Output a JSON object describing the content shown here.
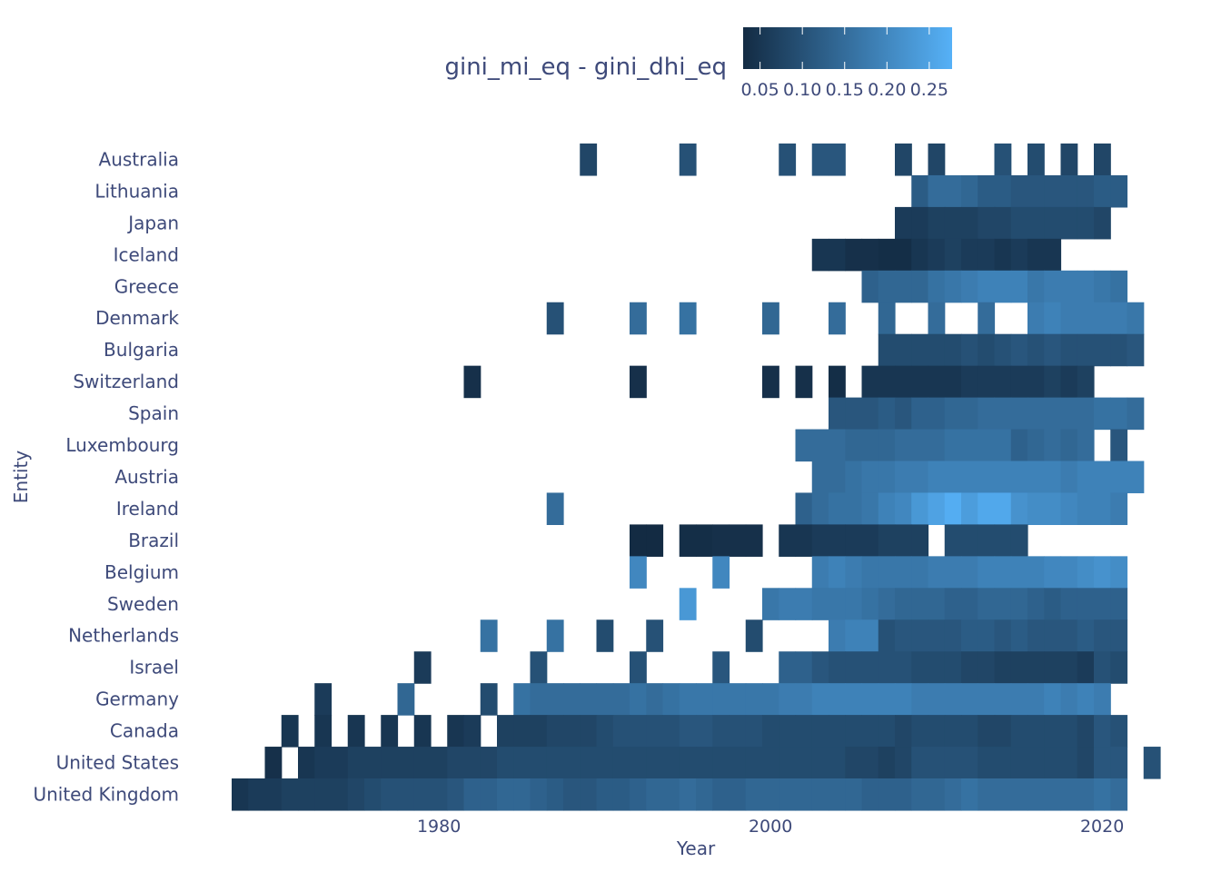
{
  "chart_data": {
    "type": "heatmap",
    "xlabel": "Year",
    "ylabel": "Entity",
    "xlim": [
      1967.5,
      2023.5
    ],
    "x_ticks": [
      "1980",
      "2000",
      "2020"
    ],
    "legend": {
      "title": "gini_mi_eq - gini_dhi_eq",
      "ticks": [
        "0.05",
        "0.10",
        "0.15",
        "0.20",
        "0.25"
      ],
      "range": [
        0.03,
        0.277
      ],
      "position": "top",
      "colors": [
        "#132b43",
        "#56b1f7"
      ]
    },
    "entities": [
      "Australia",
      "Lithuania",
      "Japan",
      "Iceland",
      "Greece",
      "Denmark",
      "Bulgaria",
      "Switzerland",
      "Spain",
      "Luxembourg",
      "Austria",
      "Ireland",
      "Brazil",
      "Belgium",
      "Sweden",
      "Netherlands",
      "Israel",
      "Germany",
      "Canada",
      "United States",
      "United Kingdom"
    ],
    "series": [
      {
        "name": "Australia",
        "years": [
          1989,
          1995,
          2001,
          2003,
          2004,
          2008,
          2010,
          2014,
          2016,
          2018,
          2020
        ],
        "values": [
          0.08,
          0.1,
          0.1,
          0.11,
          0.11,
          0.08,
          0.08,
          0.1,
          0.09,
          0.08,
          0.08
        ]
      },
      {
        "name": "Lithuania",
        "years": [
          2009,
          2010,
          2011,
          2012,
          2013,
          2014,
          2015,
          2016,
          2017,
          2018,
          2019,
          2020,
          2021
        ],
        "values": [
          0.12,
          0.15,
          0.15,
          0.14,
          0.12,
          0.12,
          0.11,
          0.11,
          0.11,
          0.11,
          0.11,
          0.12,
          0.12
        ]
      },
      {
        "name": "Japan",
        "years": [
          2008,
          2009,
          2010,
          2011,
          2012,
          2013,
          2014,
          2015,
          2016,
          2017,
          2018,
          2019,
          2020
        ],
        "values": [
          0.06,
          0.06,
          0.07,
          0.07,
          0.07,
          0.08,
          0.08,
          0.09,
          0.09,
          0.09,
          0.09,
          0.09,
          0.08
        ]
      },
      {
        "name": "Iceland",
        "years": [
          2003,
          2004,
          2005,
          2006,
          2007,
          2008,
          2009,
          2010,
          2011,
          2012,
          2013,
          2014,
          2015,
          2016,
          2017
        ],
        "values": [
          0.05,
          0.05,
          0.04,
          0.04,
          0.035,
          0.035,
          0.05,
          0.06,
          0.07,
          0.06,
          0.06,
          0.05,
          0.06,
          0.05,
          0.05
        ]
      },
      {
        "name": "Greece",
        "years": [
          2006,
          2007,
          2008,
          2009,
          2010,
          2011,
          2012,
          2013,
          2014,
          2015,
          2016,
          2017,
          2018,
          2019,
          2020,
          2021
        ],
        "values": [
          0.13,
          0.14,
          0.14,
          0.14,
          0.16,
          0.17,
          0.18,
          0.19,
          0.19,
          0.19,
          0.17,
          0.18,
          0.18,
          0.18,
          0.17,
          0.16
        ]
      },
      {
        "name": "Denmark",
        "years": [
          1987,
          1992,
          1995,
          2000,
          2004,
          2007,
          2010,
          2013,
          2016,
          2017,
          2018,
          2019,
          2020,
          2021,
          2022
        ],
        "values": [
          0.1,
          0.15,
          0.16,
          0.14,
          0.15,
          0.14,
          0.15,
          0.15,
          0.18,
          0.19,
          0.18,
          0.18,
          0.18,
          0.18,
          0.17
        ]
      },
      {
        "name": "Bulgaria",
        "years": [
          2007,
          2008,
          2009,
          2010,
          2011,
          2012,
          2013,
          2014,
          2015,
          2016,
          2017,
          2018,
          2019,
          2020,
          2021,
          2022
        ],
        "values": [
          0.09,
          0.09,
          0.09,
          0.09,
          0.09,
          0.1,
          0.09,
          0.1,
          0.11,
          0.1,
          0.11,
          0.1,
          0.1,
          0.1,
          0.1,
          0.11
        ]
      },
      {
        "name": "Switzerland",
        "years": [
          1982,
          1992,
          2000,
          2002,
          2004,
          2006,
          2007,
          2008,
          2009,
          2010,
          2011,
          2012,
          2013,
          2014,
          2015,
          2016,
          2017,
          2018,
          2019
        ],
        "values": [
          0.04,
          0.04,
          0.04,
          0.04,
          0.035,
          0.05,
          0.05,
          0.05,
          0.05,
          0.05,
          0.05,
          0.06,
          0.06,
          0.06,
          0.06,
          0.06,
          0.07,
          0.06,
          0.07
        ]
      },
      {
        "name": "Spain",
        "years": [
          2004,
          2005,
          2006,
          2007,
          2008,
          2009,
          2010,
          2011,
          2012,
          2013,
          2014,
          2015,
          2016,
          2017,
          2018,
          2019,
          2020,
          2021,
          2022
        ],
        "values": [
          0.11,
          0.11,
          0.11,
          0.12,
          0.11,
          0.13,
          0.13,
          0.14,
          0.14,
          0.15,
          0.15,
          0.15,
          0.15,
          0.15,
          0.15,
          0.15,
          0.16,
          0.16,
          0.15
        ]
      },
      {
        "name": "Luxembourg",
        "years": [
          2002,
          2003,
          2004,
          2005,
          2006,
          2007,
          2008,
          2009,
          2010,
          2011,
          2012,
          2013,
          2014,
          2015,
          2016,
          2017,
          2018,
          2019,
          2021
        ],
        "values": [
          0.15,
          0.15,
          0.15,
          0.14,
          0.14,
          0.14,
          0.15,
          0.15,
          0.15,
          0.16,
          0.16,
          0.16,
          0.16,
          0.13,
          0.14,
          0.15,
          0.14,
          0.15,
          0.11
        ]
      },
      {
        "name": "Austria",
        "years": [
          2003,
          2004,
          2005,
          2006,
          2007,
          2008,
          2009,
          2010,
          2011,
          2012,
          2013,
          2014,
          2015,
          2016,
          2017,
          2018,
          2019,
          2020,
          2021,
          2022
        ],
        "values": [
          0.15,
          0.15,
          0.16,
          0.17,
          0.17,
          0.18,
          0.18,
          0.19,
          0.19,
          0.19,
          0.19,
          0.19,
          0.19,
          0.19,
          0.19,
          0.18,
          0.19,
          0.19,
          0.19,
          0.19
        ]
      },
      {
        "name": "Ireland",
        "years": [
          1987,
          2002,
          2003,
          2004,
          2005,
          2006,
          2007,
          2008,
          2009,
          2010,
          2011,
          2012,
          2013,
          2014,
          2015,
          2016,
          2017,
          2018,
          2019,
          2020,
          2021
        ],
        "values": [
          0.15,
          0.13,
          0.15,
          0.16,
          0.16,
          0.17,
          0.19,
          0.2,
          0.23,
          0.25,
          0.27,
          0.24,
          0.26,
          0.26,
          0.22,
          0.21,
          0.21,
          0.2,
          0.19,
          0.19,
          0.18
        ]
      },
      {
        "name": "Brazil",
        "years": [
          1992,
          1993,
          1995,
          1996,
          1997,
          1998,
          1999,
          2001,
          2002,
          2003,
          2004,
          2005,
          2006,
          2007,
          2008,
          2009,
          2011,
          2012,
          2013,
          2014,
          2015
        ],
        "values": [
          0.03,
          0.03,
          0.035,
          0.035,
          0.04,
          0.04,
          0.04,
          0.05,
          0.05,
          0.06,
          0.06,
          0.06,
          0.06,
          0.07,
          0.07,
          0.07,
          0.09,
          0.09,
          0.09,
          0.09,
          0.09
        ]
      },
      {
        "name": "Belgium",
        "years": [
          1992,
          1997,
          2003,
          2004,
          2005,
          2006,
          2007,
          2008,
          2009,
          2010,
          2011,
          2012,
          2013,
          2014,
          2015,
          2016,
          2017,
          2018,
          2019,
          2020,
          2021
        ],
        "values": [
          0.2,
          0.2,
          0.18,
          0.19,
          0.18,
          0.17,
          0.17,
          0.17,
          0.17,
          0.18,
          0.18,
          0.18,
          0.19,
          0.19,
          0.19,
          0.19,
          0.2,
          0.2,
          0.21,
          0.22,
          0.21
        ]
      },
      {
        "name": "Sweden",
        "years": [
          1995,
          2000,
          2001,
          2002,
          2003,
          2004,
          2005,
          2006,
          2007,
          2008,
          2009,
          2010,
          2011,
          2012,
          2013,
          2014,
          2015,
          2016,
          2017,
          2018,
          2019,
          2020,
          2021
        ],
        "values": [
          0.23,
          0.17,
          0.18,
          0.18,
          0.17,
          0.17,
          0.17,
          0.16,
          0.15,
          0.14,
          0.14,
          0.14,
          0.13,
          0.13,
          0.14,
          0.14,
          0.14,
          0.13,
          0.12,
          0.13,
          0.13,
          0.13,
          0.13
        ]
      },
      {
        "name": "Netherlands",
        "years": [
          1983,
          1987,
          1990,
          1993,
          1999,
          2004,
          2005,
          2006,
          2007,
          2008,
          2009,
          2010,
          2011,
          2012,
          2013,
          2014,
          2015,
          2016,
          2017,
          2018,
          2019,
          2020,
          2021
        ],
        "values": [
          0.16,
          0.16,
          0.09,
          0.1,
          0.09,
          0.18,
          0.19,
          0.19,
          0.1,
          0.11,
          0.11,
          0.11,
          0.11,
          0.12,
          0.12,
          0.11,
          0.12,
          0.11,
          0.11,
          0.11,
          0.12,
          0.11,
          0.11
        ]
      },
      {
        "name": "Israel",
        "years": [
          1979,
          1986,
          1992,
          1997,
          2001,
          2002,
          2003,
          2004,
          2005,
          2006,
          2007,
          2008,
          2009,
          2010,
          2011,
          2012,
          2013,
          2014,
          2015,
          2016,
          2017,
          2018,
          2019,
          2020,
          2021
        ],
        "values": [
          0.06,
          0.1,
          0.1,
          0.11,
          0.13,
          0.13,
          0.11,
          0.1,
          0.1,
          0.1,
          0.1,
          0.1,
          0.09,
          0.09,
          0.09,
          0.08,
          0.08,
          0.07,
          0.07,
          0.07,
          0.07,
          0.07,
          0.06,
          0.1,
          0.09
        ]
      },
      {
        "name": "Germany",
        "years": [
          1973,
          1978,
          1983,
          1985,
          1986,
          1987,
          1988,
          1989,
          1990,
          1991,
          1992,
          1993,
          1994,
          1995,
          1996,
          1997,
          1998,
          1999,
          2000,
          2001,
          2002,
          2003,
          2004,
          2005,
          2006,
          2007,
          2008,
          2009,
          2010,
          2011,
          2012,
          2013,
          2014,
          2015,
          2016,
          2017,
          2018,
          2019,
          2020
        ],
        "values": [
          0.06,
          0.14,
          0.09,
          0.16,
          0.15,
          0.15,
          0.15,
          0.15,
          0.15,
          0.15,
          0.16,
          0.15,
          0.16,
          0.17,
          0.17,
          0.17,
          0.17,
          0.17,
          0.17,
          0.18,
          0.18,
          0.19,
          0.19,
          0.19,
          0.19,
          0.19,
          0.19,
          0.18,
          0.18,
          0.18,
          0.18,
          0.18,
          0.18,
          0.18,
          0.18,
          0.19,
          0.18,
          0.19,
          0.18
        ]
      },
      {
        "name": "Canada",
        "years": [
          1971,
          1973,
          1975,
          1977,
          1979,
          1981,
          1982,
          1984,
          1985,
          1986,
          1987,
          1988,
          1989,
          1990,
          1991,
          1992,
          1993,
          1994,
          1995,
          1996,
          1997,
          1998,
          1999,
          2000,
          2001,
          2002,
          2003,
          2004,
          2005,
          2006,
          2007,
          2008,
          2009,
          2010,
          2011,
          2012,
          2013,
          2014,
          2015,
          2016,
          2017,
          2018,
          2019,
          2020,
          2021
        ],
        "values": [
          0.05,
          0.05,
          0.05,
          0.05,
          0.05,
          0.05,
          0.06,
          0.07,
          0.07,
          0.07,
          0.08,
          0.08,
          0.08,
          0.09,
          0.1,
          0.1,
          0.1,
          0.1,
          0.11,
          0.11,
          0.1,
          0.1,
          0.1,
          0.09,
          0.09,
          0.09,
          0.09,
          0.09,
          0.09,
          0.09,
          0.09,
          0.08,
          0.09,
          0.09,
          0.09,
          0.09,
          0.08,
          0.08,
          0.09,
          0.09,
          0.09,
          0.09,
          0.08,
          0.11,
          0.1
        ]
      },
      {
        "name": "United States",
        "years": [
          1970,
          1972,
          1973,
          1974,
          1975,
          1976,
          1977,
          1978,
          1979,
          1980,
          1981,
          1982,
          1983,
          1984,
          1985,
          1986,
          1987,
          1988,
          1989,
          1990,
          1991,
          1992,
          1993,
          1994,
          1995,
          1996,
          1997,
          1998,
          1999,
          2000,
          2001,
          2002,
          2003,
          2004,
          2005,
          2006,
          2007,
          2008,
          2009,
          2010,
          2011,
          2012,
          2013,
          2014,
          2015,
          2016,
          2017,
          2018,
          2019,
          2020,
          2021,
          2023
        ],
        "values": [
          0.04,
          0.05,
          0.06,
          0.06,
          0.07,
          0.07,
          0.07,
          0.07,
          0.07,
          0.07,
          0.08,
          0.08,
          0.08,
          0.09,
          0.09,
          0.09,
          0.09,
          0.09,
          0.09,
          0.09,
          0.09,
          0.09,
          0.09,
          0.09,
          0.09,
          0.09,
          0.09,
          0.09,
          0.09,
          0.09,
          0.09,
          0.09,
          0.09,
          0.09,
          0.08,
          0.08,
          0.07,
          0.08,
          0.1,
          0.1,
          0.1,
          0.1,
          0.09,
          0.09,
          0.09,
          0.09,
          0.09,
          0.09,
          0.08,
          0.11,
          0.11,
          0.1
        ]
      },
      {
        "name": "United Kingdom",
        "years": [
          1968,
          1969,
          1970,
          1971,
          1972,
          1973,
          1974,
          1975,
          1976,
          1977,
          1978,
          1979,
          1980,
          1981,
          1982,
          1983,
          1984,
          1985,
          1986,
          1987,
          1988,
          1989,
          1990,
          1991,
          1992,
          1993,
          1994,
          1995,
          1996,
          1997,
          1998,
          1999,
          2000,
          2001,
          2002,
          2003,
          2004,
          2005,
          2006,
          2007,
          2008,
          2009,
          2010,
          2011,
          2012,
          2013,
          2014,
          2015,
          2016,
          2017,
          2018,
          2019,
          2020,
          2021
        ],
        "values": [
          0.05,
          0.06,
          0.06,
          0.07,
          0.07,
          0.07,
          0.07,
          0.08,
          0.09,
          0.1,
          0.1,
          0.1,
          0.1,
          0.11,
          0.13,
          0.13,
          0.14,
          0.14,
          0.13,
          0.12,
          0.11,
          0.11,
          0.12,
          0.12,
          0.13,
          0.14,
          0.14,
          0.15,
          0.14,
          0.13,
          0.13,
          0.14,
          0.14,
          0.14,
          0.14,
          0.14,
          0.14,
          0.14,
          0.13,
          0.13,
          0.13,
          0.14,
          0.14,
          0.15,
          0.16,
          0.15,
          0.15,
          0.15,
          0.15,
          0.15,
          0.15,
          0.15,
          0.16,
          0.15
        ]
      }
    ]
  }
}
